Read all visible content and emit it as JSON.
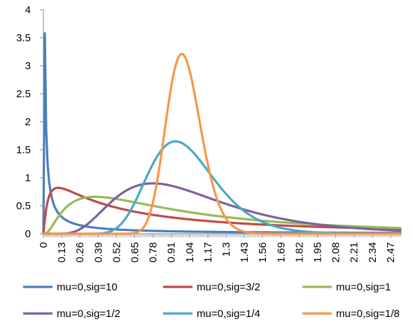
{
  "chart_data": {
    "type": "line",
    "title": "",
    "xlabel": "",
    "ylabel": "",
    "xlim": [
      0,
      2.54
    ],
    "ylim": [
      0,
      4
    ],
    "y_ticks": [
      "0",
      "0.5",
      "1",
      "1.5",
      "2",
      "2.5",
      "3",
      "3.5",
      "4"
    ],
    "x_ticks": [
      "0",
      "0.13",
      "0.26",
      "0.39",
      "0.52",
      "0.65",
      "0.78",
      "0.91",
      "1.04",
      "1.17",
      "1.3",
      "1.43",
      "1.56",
      "1.69",
      "1.82",
      "1.95",
      "2.08",
      "2.21",
      "2.34",
      "2.47"
    ],
    "grid": false,
    "legend_position": "bottom",
    "series": [
      {
        "name": "mu=0,sig=10",
        "color": "#4A7EBB",
        "mu": 0,
        "sigma": 10,
        "peak": [
          0.01,
          3.58
        ]
      },
      {
        "name": "mu=0,sig=3/2",
        "color": "#BE4B48",
        "mu": 0,
        "sigma": 1.5,
        "peak": [
          0.11,
          0.82
        ]
      },
      {
        "name": "mu=0,sig=1",
        "color": "#98B954",
        "mu": 0,
        "sigma": 1,
        "peak": [
          0.37,
          0.66
        ]
      },
      {
        "name": "mu=0,sig=1/2",
        "color": "#7D60A0",
        "mu": 0,
        "sigma": 0.5,
        "peak": [
          0.78,
          0.9
        ]
      },
      {
        "name": "mu=0,sig=1/4",
        "color": "#46AAC5",
        "mu": 0,
        "sigma": 0.25,
        "peak": [
          0.94,
          1.65
        ]
      },
      {
        "name": "mu=0,sig=1/8",
        "color": "#F79646",
        "mu": 0,
        "sigma": 0.125,
        "peak": [
          0.98,
          3.21
        ]
      }
    ]
  }
}
